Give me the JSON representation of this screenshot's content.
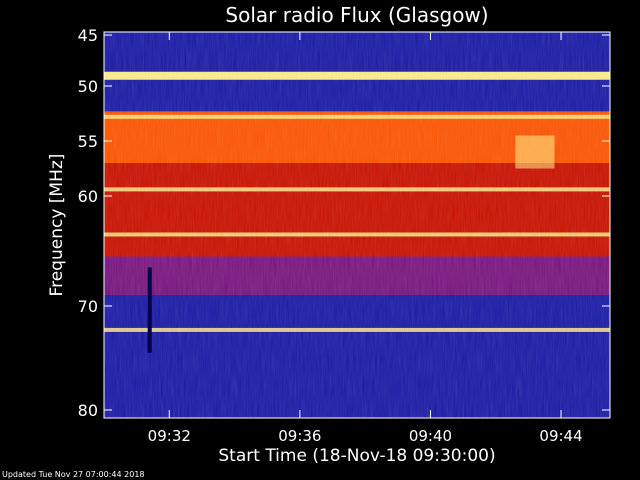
{
  "chart_data": {
    "type": "heatmap",
    "title": "Solar radio Flux (Glasgow)",
    "xlabel": "Start Time (18-Nov-18 09:30:00)",
    "ylabel": "Frequency [MHz]",
    "xlim_minutes": [
      0,
      15.5
    ],
    "ylim": [
      45,
      80
    ],
    "y_inverted": true,
    "x_tick_labels": [
      "09:32",
      "09:36",
      "09:40",
      "09:44"
    ],
    "x_tick_minutes": [
      2,
      6,
      10,
      14
    ],
    "y_ticks": [
      45,
      50,
      55,
      60,
      70,
      80
    ],
    "y_tick_labels": [
      "45",
      "50",
      "55",
      "60",
      "70",
      "80"
    ],
    "colors": {
      "background": "#000000",
      "low": "#1a1aa8",
      "mid_low": "#7a1580",
      "mid": "#cc1100",
      "high": "#ff5500",
      "peak": "#ffee88"
    },
    "bands": [
      {
        "from": 45.0,
        "to": 48.6,
        "level": "low"
      },
      {
        "from": 48.6,
        "to": 49.4,
        "level": "peak"
      },
      {
        "from": 49.4,
        "to": 52.3,
        "level": "low"
      },
      {
        "from": 52.3,
        "to": 57.0,
        "level": "high"
      },
      {
        "from": 57.0,
        "to": 61.5,
        "level": "mid"
      },
      {
        "from": 61.5,
        "to": 65.5,
        "level": "mid"
      },
      {
        "from": 65.5,
        "to": 69.0,
        "level": "mid_low"
      },
      {
        "from": 69.0,
        "to": 80.0,
        "level": "low"
      }
    ],
    "bright_lines_mhz": [
      48.9,
      52.8,
      59.4,
      63.5,
      72.3
    ],
    "features": [
      {
        "kind": "burst",
        "minute_from": 12.6,
        "minute_to": 13.8,
        "mhz_from": 54.5,
        "mhz_to": 57.5
      },
      {
        "kind": "vertical_streak",
        "minute": 1.4,
        "mhz_from": 66.5,
        "mhz_to": 74.5
      }
    ]
  },
  "footer": "Updated Tue Nov 27 07:00:44 2018"
}
